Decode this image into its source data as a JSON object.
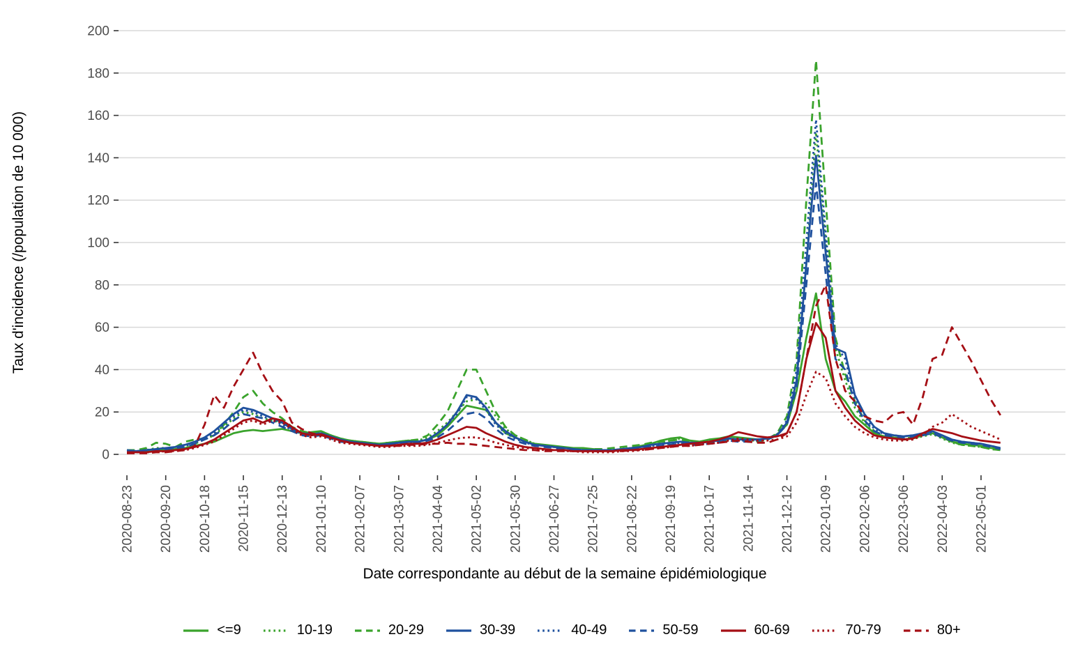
{
  "chart_data": {
    "type": "line",
    "title": "",
    "xlabel": "Date correspondante au début de la semaine épidémiologique",
    "ylabel": "Taux d'incidence (/population de 10 000)",
    "ylim": [
      0,
      200
    ],
    "yticks": [
      0,
      20,
      40,
      60,
      80,
      100,
      120,
      140,
      160,
      180,
      200
    ],
    "grid": "horizontal-only",
    "gridline_color": "#d9d9d9",
    "tick_label_color": "#4d4d4d",
    "legend_position": "bottom-center",
    "x_tick_labels": [
      "2020-08-23",
      "2020-09-20",
      "2020-10-18",
      "2020-11-15",
      "2020-12-13",
      "2021-01-10",
      "2021-02-07",
      "2021-03-07",
      "2021-04-04",
      "2021-05-02",
      "2021-05-30",
      "2021-06-27",
      "2021-07-25",
      "2021-08-22",
      "2021-09-19",
      "2021-10-17",
      "2021-11-14",
      "2021-12-12",
      "2022-01-09",
      "2022-02-06",
      "2022-03-06",
      "2022-04-03",
      "2022-05-01"
    ],
    "x": [
      "2020-08-23",
      "2020-08-30",
      "2020-09-06",
      "2020-09-13",
      "2020-09-20",
      "2020-09-27",
      "2020-10-04",
      "2020-10-11",
      "2020-10-18",
      "2020-10-25",
      "2020-11-01",
      "2020-11-08",
      "2020-11-15",
      "2020-11-22",
      "2020-11-29",
      "2020-12-06",
      "2020-12-13",
      "2020-12-20",
      "2020-12-27",
      "2021-01-03",
      "2021-01-10",
      "2021-01-17",
      "2021-01-24",
      "2021-01-31",
      "2021-02-07",
      "2021-02-14",
      "2021-02-21",
      "2021-02-28",
      "2021-03-07",
      "2021-03-14",
      "2021-03-21",
      "2021-03-28",
      "2021-04-04",
      "2021-04-11",
      "2021-04-18",
      "2021-04-25",
      "2021-05-02",
      "2021-05-09",
      "2021-05-16",
      "2021-05-23",
      "2021-05-30",
      "2021-06-06",
      "2021-06-13",
      "2021-06-20",
      "2021-06-27",
      "2021-07-04",
      "2021-07-11",
      "2021-07-18",
      "2021-07-25",
      "2021-08-01",
      "2021-08-08",
      "2021-08-15",
      "2021-08-22",
      "2021-08-29",
      "2021-09-05",
      "2021-09-12",
      "2021-09-19",
      "2021-09-26",
      "2021-10-03",
      "2021-10-10",
      "2021-10-17",
      "2021-10-24",
      "2021-10-31",
      "2021-11-07",
      "2021-11-14",
      "2021-11-21",
      "2021-11-28",
      "2021-12-05",
      "2021-12-12",
      "2021-12-19",
      "2021-12-26",
      "2022-01-02",
      "2022-01-09",
      "2022-01-16",
      "2022-01-23",
      "2022-01-30",
      "2022-02-06",
      "2022-02-13",
      "2022-02-20",
      "2022-02-27",
      "2022-03-06",
      "2022-03-13",
      "2022-03-20",
      "2022-03-27",
      "2022-04-03",
      "2022-04-10",
      "2022-04-17",
      "2022-04-24",
      "2022-05-01",
      "2022-05-08",
      "2022-05-15"
    ],
    "series": [
      {
        "name": "<=9",
        "color": "#3aa32c",
        "style": "solid",
        "values": [
          1.5,
          1.5,
          1.5,
          2,
          2,
          2.5,
          3,
          4,
          5,
          6,
          8,
          10,
          11,
          11.5,
          11,
          11.5,
          12,
          11,
          10,
          10.5,
          11,
          9,
          7.5,
          6.5,
          6,
          5.5,
          5,
          5.5,
          6,
          6.5,
          6,
          7,
          9,
          13,
          18,
          23,
          22,
          21,
          15,
          10,
          8,
          6,
          5,
          4.5,
          4,
          3.5,
          3,
          3,
          2.5,
          2,
          2,
          2.5,
          3,
          4,
          5,
          6.5,
          7.5,
          8,
          6.5,
          6,
          7,
          7.5,
          8.5,
          8,
          7.5,
          7,
          7.5,
          9.5,
          14,
          30,
          55,
          76,
          45,
          30,
          25,
          18,
          14,
          10,
          8.5,
          8,
          7,
          7.5,
          9,
          10,
          8,
          6,
          5,
          4.5,
          4,
          3,
          2.5
        ]
      },
      {
        "name": "10-19",
        "color": "#3aa32c",
        "style": "dotted",
        "values": [
          1.5,
          1.5,
          2,
          3,
          3,
          3,
          4,
          5,
          7,
          9,
          13,
          17,
          20,
          19,
          17,
          16,
          15,
          12,
          10,
          10,
          11,
          9,
          7,
          6,
          5.5,
          5,
          5,
          5.5,
          6,
          6,
          6.5,
          8,
          11,
          15,
          20,
          25,
          26,
          24,
          18,
          12,
          9,
          7,
          5,
          4,
          3.5,
          3,
          2.5,
          2,
          2,
          2,
          2,
          2.5,
          3,
          3.5,
          4.5,
          5.5,
          6.5,
          7.5,
          6,
          5.5,
          6,
          6.5,
          7.5,
          7,
          6.5,
          6.5,
          7,
          9,
          15,
          35,
          90,
          152,
          100,
          50,
          35,
          22,
          15,
          10,
          8,
          7.5,
          7,
          7.5,
          8.5,
          9.5,
          7.5,
          5.5,
          4.5,
          4,
          3.5,
          2.5,
          2
        ]
      },
      {
        "name": "20-29",
        "color": "#3aa32c",
        "style": "dashed",
        "values": [
          2,
          2,
          3,
          5.5,
          5,
          3.5,
          6,
          7,
          7.5,
          9,
          14,
          20,
          27,
          30,
          24,
          20,
          17,
          13,
          11,
          10,
          10.5,
          9,
          7.5,
          6.5,
          6,
          5.5,
          5,
          5.5,
          6,
          6.5,
          7,
          9,
          14,
          20,
          30,
          40,
          40,
          30,
          20,
          13,
          9,
          7,
          5,
          4,
          3.5,
          3,
          2.5,
          2.5,
          2.5,
          2.5,
          3,
          3.5,
          4,
          4.5,
          5.5,
          6,
          6.5,
          7,
          6,
          5.5,
          6,
          6,
          7,
          6.5,
          6,
          6,
          7,
          10,
          18,
          45,
          120,
          186,
          120,
          55,
          38,
          25,
          16,
          11,
          8.5,
          8,
          7.5,
          8,
          9,
          10,
          8,
          6,
          4.5,
          4,
          3.5,
          2.5,
          2
        ]
      },
      {
        "name": "30-39",
        "color": "#1f519e",
        "style": "solid",
        "values": [
          2,
          1.5,
          2,
          2.5,
          3,
          3.5,
          4.5,
          6,
          8,
          11,
          15,
          19,
          22,
          21,
          19,
          17,
          15,
          12,
          10,
          9.5,
          10,
          8.5,
          7,
          6,
          5.5,
          5,
          4.5,
          5,
          5.5,
          6,
          6,
          7,
          10,
          14,
          20,
          28,
          27,
          22,
          15,
          11,
          8,
          6,
          4.5,
          4,
          3.5,
          3,
          2.5,
          2,
          2,
          2,
          2,
          2.5,
          3,
          3.5,
          4.5,
          5,
          5.5,
          6,
          5.5,
          5.5,
          6,
          6.5,
          7.5,
          7,
          7,
          7,
          7.5,
          9,
          15,
          35,
          90,
          141,
          95,
          50,
          48,
          28,
          19,
          13,
          10,
          9,
          8.5,
          9,
          10,
          11,
          9,
          7,
          6,
          5.5,
          5,
          4,
          3
        ]
      },
      {
        "name": "40-49",
        "color": "#1f519e",
        "style": "dotted",
        "values": [
          1.5,
          1.5,
          2,
          2.5,
          3,
          3,
          4,
          5.5,
          7.5,
          10,
          14,
          18,
          21,
          20,
          18,
          16,
          14,
          11.5,
          9.5,
          9,
          9.5,
          8,
          6.5,
          6,
          5.5,
          5,
          4.5,
          5,
          5.5,
          5.5,
          6,
          7,
          10,
          14,
          19,
          27,
          26,
          21,
          14,
          10,
          7.5,
          5.5,
          4.5,
          4,
          3.5,
          3,
          2.5,
          2,
          2,
          2,
          2,
          2.5,
          3,
          3.5,
          4,
          4.5,
          5,
          5.5,
          5,
          5,
          5.5,
          6,
          7,
          6.5,
          6.5,
          7,
          7.5,
          9.5,
          16,
          40,
          100,
          158,
          105,
          52,
          45,
          27,
          18,
          12,
          9.5,
          9,
          8.5,
          9,
          9.5,
          10.5,
          8.5,
          7,
          6,
          5.5,
          5,
          4,
          3
        ]
      },
      {
        "name": "50-59",
        "color": "#1f519e",
        "style": "dashed",
        "values": [
          1.5,
          1.5,
          2,
          2,
          2.5,
          3,
          3.5,
          5,
          7,
          9,
          12,
          16,
          19,
          18,
          17,
          15,
          13,
          11,
          9,
          8.5,
          9,
          7.5,
          6,
          5.5,
          5,
          4.5,
          4,
          4.5,
          5,
          5,
          5.5,
          6.5,
          8,
          11,
          15,
          19,
          20,
          17,
          12,
          8.5,
          6.5,
          5,
          4,
          3.5,
          3,
          2.5,
          2,
          2,
          1.5,
          1.5,
          2,
          2,
          2.5,
          3,
          3.5,
          4,
          4.5,
          5,
          4.5,
          4.5,
          5,
          5.5,
          6.5,
          6,
          6,
          6.5,
          7,
          9,
          14,
          32,
          80,
          128,
          85,
          45,
          40,
          24,
          16,
          11,
          9,
          8.5,
          8,
          8.5,
          9,
          10,
          8,
          6.5,
          5.5,
          5,
          4.5,
          3.5,
          2.5
        ]
      },
      {
        "name": "60-69",
        "color": "#a50f15",
        "style": "solid",
        "values": [
          1,
          1,
          1,
          1.5,
          1.5,
          2,
          2.5,
          3.5,
          5,
          7,
          10,
          13,
          16,
          17,
          15,
          17,
          16,
          13,
          10,
          9,
          9.5,
          8,
          6.5,
          5.5,
          5,
          4.5,
          4,
          4,
          4.5,
          5,
          5,
          5.5,
          7,
          9,
          11,
          13,
          12.5,
          10,
          8,
          6,
          4.5,
          3.5,
          3,
          2.5,
          2,
          2,
          1.5,
          1.5,
          1.5,
          1.5,
          1.5,
          2,
          2,
          2.5,
          3,
          3.5,
          4,
          4.5,
          5,
          5.5,
          6,
          7,
          8.5,
          10.5,
          9.5,
          8.5,
          8,
          8.5,
          10,
          20,
          45,
          62,
          55,
          30,
          22,
          16,
          12,
          9,
          8,
          7.5,
          7,
          7.5,
          10,
          12,
          11,
          10,
          8.5,
          7.5,
          6.5,
          6,
          5.5
        ]
      },
      {
        "name": "70-79",
        "color": "#a50f15",
        "style": "dotted",
        "values": [
          1,
          1,
          1,
          1,
          1.5,
          1.5,
          2,
          3,
          4.5,
          6,
          9,
          12,
          15,
          16,
          14,
          16,
          15,
          12,
          9,
          8,
          8.5,
          7,
          5.5,
          5,
          4.5,
          4,
          3.5,
          3.5,
          4,
          4,
          4,
          4.5,
          5.5,
          6.5,
          7.5,
          8,
          8,
          7,
          5.5,
          4.5,
          3.5,
          3,
          2.5,
          2,
          2,
          1.5,
          1.5,
          1,
          1,
          1,
          1,
          1.5,
          1.5,
          2,
          2.5,
          3,
          3.5,
          4,
          4,
          4.5,
          5,
          5.5,
          6.5,
          7.5,
          7,
          6.5,
          6.5,
          7,
          8.5,
          15,
          28,
          39,
          36,
          24,
          18,
          13,
          10,
          8,
          7,
          6.5,
          6.5,
          7,
          9,
          13,
          15,
          19,
          16,
          13,
          11,
          9,
          7
        ]
      },
      {
        "name": "80+",
        "color": "#a50f15",
        "style": "dashed",
        "values": [
          0.5,
          0.5,
          0.5,
          1,
          1,
          1.5,
          2,
          4,
          14,
          28,
          22,
          32,
          40,
          48,
          38,
          30,
          25,
          15,
          12,
          10,
          9,
          8,
          6.5,
          5.5,
          5,
          4.5,
          4,
          4,
          4,
          4.5,
          4.5,
          5,
          5,
          5.5,
          5,
          5,
          4.5,
          4,
          3.5,
          3,
          2.5,
          2,
          2,
          1.5,
          1.5,
          1.5,
          1.5,
          1.5,
          1.5,
          1.5,
          1.5,
          1.5,
          2,
          2,
          2.5,
          3,
          3.5,
          4,
          4,
          4.5,
          5,
          5.5,
          6,
          6.5,
          6,
          5.5,
          5.5,
          7,
          10,
          20,
          45,
          70,
          80,
          45,
          30,
          25,
          18,
          16,
          15,
          19,
          20,
          14,
          27,
          45,
          47,
          60,
          52,
          44,
          35,
          26,
          18.5
        ]
      }
    ]
  }
}
